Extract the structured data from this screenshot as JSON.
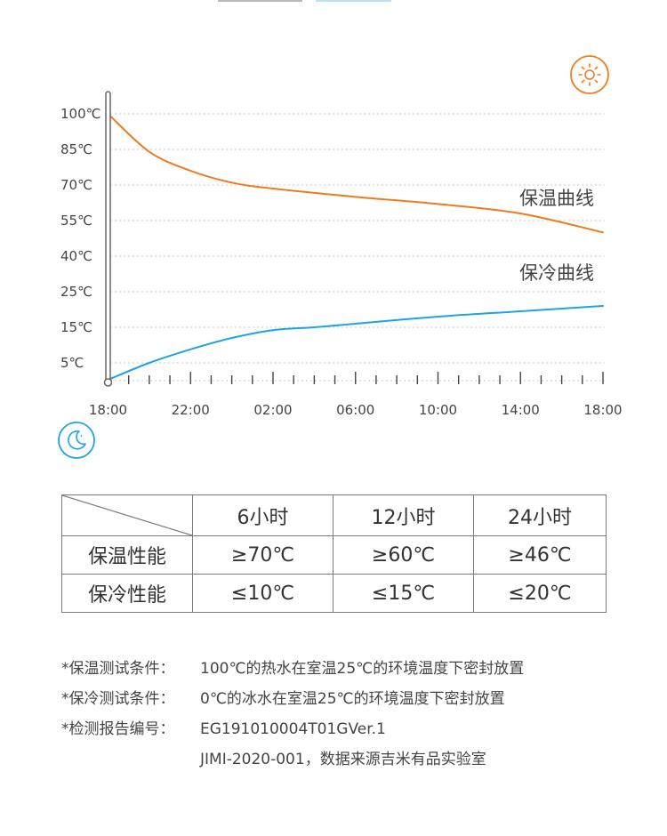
{
  "chart_data": {
    "type": "line",
    "x": [
      "18:00",
      "22:00",
      "02:00",
      "06:00",
      "10:00",
      "14:00",
      "18:00"
    ],
    "x_hours": [
      0,
      4,
      8,
      12,
      16,
      20,
      24
    ],
    "yticks": [
      "100℃",
      "85℃",
      "70℃",
      "55℃",
      "40℃",
      "25℃",
      "15℃",
      "5℃"
    ],
    "grid": "horizontal dotted",
    "series": [
      {
        "name": "保温曲线",
        "color": "#F07B1F",
        "points": [
          [
            0,
            100
          ],
          [
            2,
            84
          ],
          [
            4,
            76
          ],
          [
            6,
            71
          ],
          [
            8,
            68.5
          ],
          [
            12,
            65
          ],
          [
            16,
            62
          ],
          [
            20,
            58
          ],
          [
            24,
            50
          ]
        ]
      },
      {
        "name": "保冷曲线",
        "color": "#1EA4E4",
        "points": [
          [
            0,
            0
          ],
          [
            2,
            5
          ],
          [
            4,
            8.8
          ],
          [
            6,
            12
          ],
          [
            8,
            14.2
          ],
          [
            10,
            15
          ],
          [
            12,
            16
          ],
          [
            16,
            18
          ],
          [
            20,
            19.5
          ],
          [
            24,
            21
          ]
        ]
      }
    ]
  },
  "icons": {
    "day": "sun-icon",
    "night": "moon-icon"
  },
  "table": {
    "columns": [
      "6小时",
      "12小时",
      "24小时"
    ],
    "rows": [
      {
        "label": "保温性能",
        "values": [
          "≥70℃",
          "≥60℃",
          "≥46℃"
        ]
      },
      {
        "label": "保冷性能",
        "values": [
          "≤10℃",
          "≤15℃",
          "≤20℃"
        ]
      }
    ]
  },
  "notes": [
    {
      "key": "*保温测试条件：",
      "value": "100℃的热水在室温25℃的环境温度下密封放置"
    },
    {
      "key": "*保冷测试条件：",
      "value": "0℃的冰水在室温25℃的环境温度下密封放置"
    },
    {
      "key": "*检测报告编号：",
      "value": "EG191010004T01GVer.1"
    },
    {
      "key": "",
      "value": "JIMI-2020-001，数据来源吉米有品实验室"
    }
  ]
}
